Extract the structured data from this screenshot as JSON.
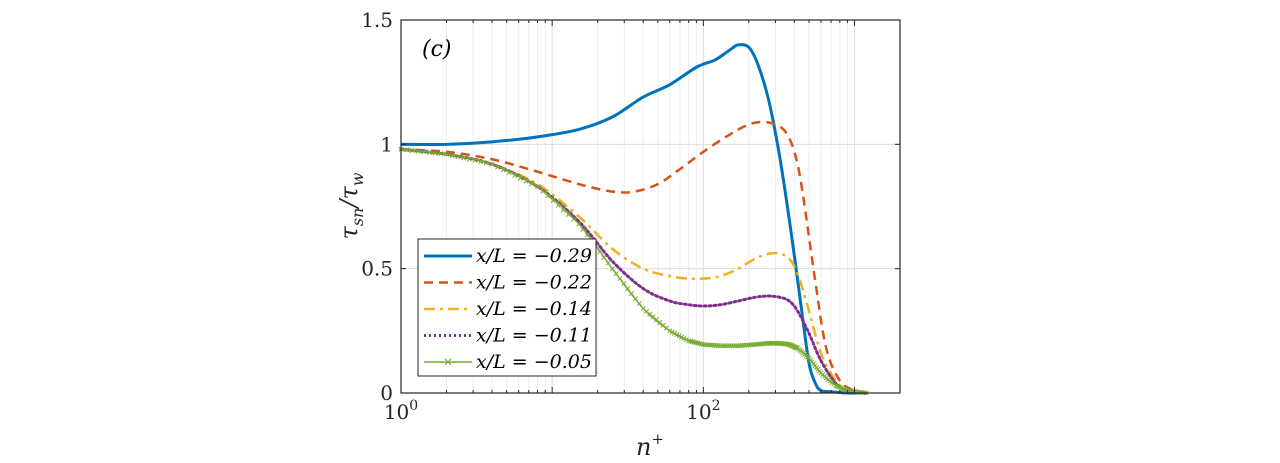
{
  "chart_data": {
    "type": "line",
    "panel_label": "(c)",
    "xlabel": "n",
    "xlabel_sup": "+",
    "ylabel_parts": [
      "τ",
      "sn",
      "/τ",
      "w"
    ],
    "xscale": "log",
    "xlim": [
      1,
      2000
    ],
    "ylim": [
      0,
      1.5
    ],
    "grid": true,
    "legend_location": "lower-left",
    "xticks": [
      {
        "value": 1,
        "base": "10",
        "exp": "0"
      },
      {
        "value": 100,
        "base": "10",
        "exp": "2"
      }
    ],
    "yticks": [
      {
        "value": 0,
        "label": "0"
      },
      {
        "value": 0.5,
        "label": "0.5"
      },
      {
        "value": 1,
        "label": "1"
      },
      {
        "value": 1.5,
        "label": "1.5"
      }
    ],
    "series": [
      {
        "name": "x/L = −0.29",
        "color": "#0072BD",
        "style": "solid",
        "x": [
          1,
          2,
          4,
          8,
          15,
          25,
          40,
          60,
          90,
          120,
          150,
          170,
          200,
          230,
          270,
          320,
          380,
          450,
          500,
          550,
          600,
          700,
          900,
          1200
        ],
        "y": [
          1.0,
          1.0,
          1.01,
          1.03,
          1.06,
          1.11,
          1.19,
          1.24,
          1.31,
          1.34,
          1.38,
          1.4,
          1.39,
          1.32,
          1.18,
          0.95,
          0.65,
          0.32,
          0.12,
          0.04,
          0.01,
          0.005,
          0.0,
          0.0
        ]
      },
      {
        "name": "x/L = −0.22",
        "color": "#D95319",
        "style": "dashed",
        "x": [
          1,
          2,
          4,
          8,
          15,
          25,
          35,
          50,
          70,
          100,
          150,
          200,
          250,
          300,
          350,
          400,
          450,
          550,
          650,
          800,
          1000,
          1200
        ],
        "y": [
          0.98,
          0.97,
          0.94,
          0.89,
          0.84,
          0.81,
          0.81,
          0.84,
          0.9,
          0.97,
          1.04,
          1.08,
          1.09,
          1.08,
          1.05,
          0.97,
          0.82,
          0.45,
          0.18,
          0.05,
          0.01,
          0.0
        ]
      },
      {
        "name": "x/L = −0.14",
        "color": "#EDB120",
        "style": "dashdot",
        "x": [
          1,
          2,
          4,
          8,
          15,
          25,
          40,
          60,
          80,
          100,
          130,
          170,
          220,
          270,
          320,
          370,
          420,
          500,
          600,
          750,
          900,
          1200
        ],
        "y": [
          0.98,
          0.96,
          0.92,
          0.84,
          0.71,
          0.58,
          0.5,
          0.47,
          0.46,
          0.46,
          0.47,
          0.5,
          0.54,
          0.56,
          0.56,
          0.54,
          0.48,
          0.33,
          0.16,
          0.05,
          0.01,
          0.0
        ]
      },
      {
        "name": "x/L = −0.11",
        "color": "#7E2F8E",
        "style": "dotted",
        "x": [
          1,
          2,
          4,
          8,
          15,
          25,
          40,
          60,
          80,
          100,
          130,
          170,
          220,
          270,
          320,
          370,
          420,
          500,
          600,
          750,
          900,
          1200
        ],
        "y": [
          0.98,
          0.96,
          0.92,
          0.83,
          0.69,
          0.53,
          0.42,
          0.37,
          0.355,
          0.35,
          0.355,
          0.37,
          0.385,
          0.39,
          0.385,
          0.37,
          0.33,
          0.24,
          0.13,
          0.04,
          0.01,
          0.0
        ]
      },
      {
        "name": "x/L = −0.05",
        "color": "#77AC30",
        "style": "solid-x",
        "x": [
          1,
          2,
          4,
          8,
          15,
          25,
          40,
          60,
          80,
          100,
          130,
          170,
          220,
          270,
          320,
          370,
          420,
          500,
          600,
          750,
          900,
          1200
        ],
        "y": [
          0.98,
          0.96,
          0.92,
          0.83,
          0.68,
          0.5,
          0.34,
          0.25,
          0.21,
          0.195,
          0.19,
          0.19,
          0.195,
          0.2,
          0.2,
          0.195,
          0.18,
          0.14,
          0.08,
          0.03,
          0.01,
          0.0
        ]
      }
    ]
  }
}
